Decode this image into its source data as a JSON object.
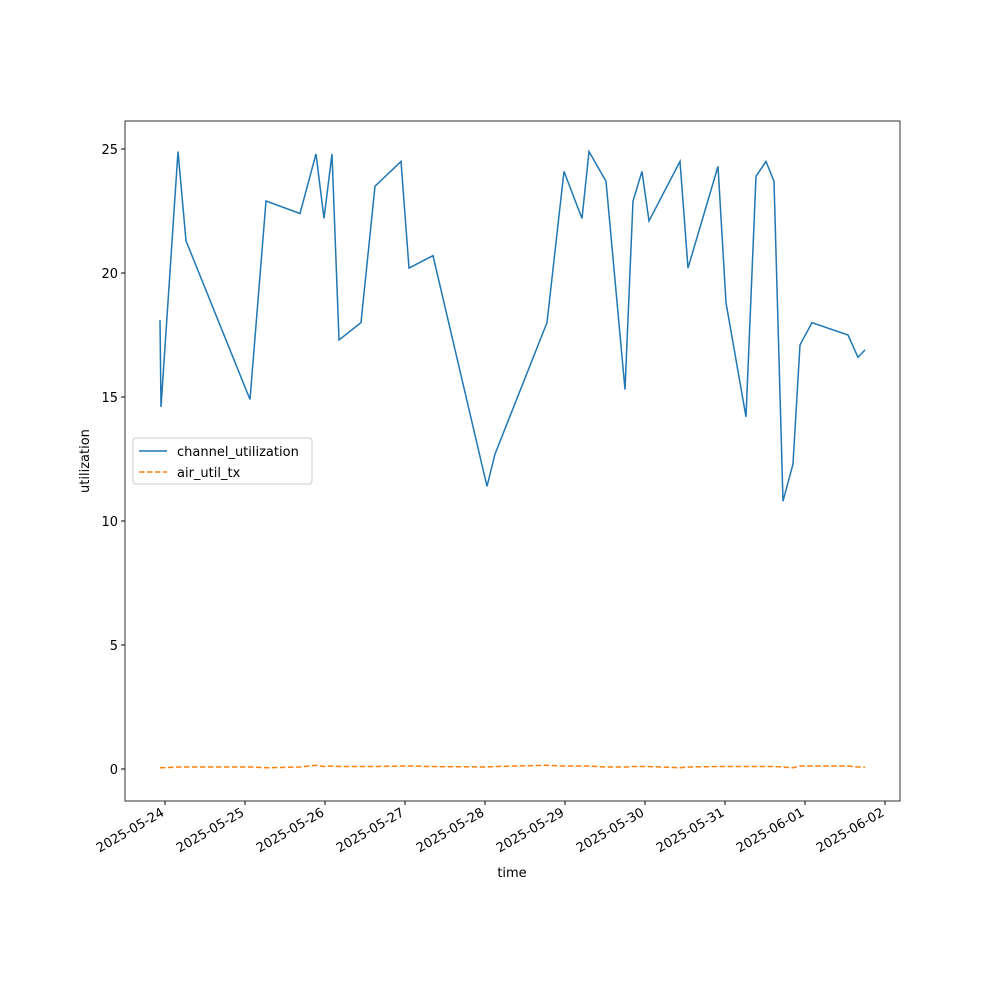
{
  "chart_data": {
    "type": "line",
    "xlabel": "time",
    "ylabel": "utilization",
    "x": [
      "2025-05-23T22:30",
      "2025-05-23T22:48",
      "2025-05-24T03:54",
      "2025-05-24T06:18",
      "2025-05-25T01:30",
      "2025-05-25T06:18",
      "2025-05-25T16:30",
      "2025-05-25T21:18",
      "2025-05-25T23:42",
      "2025-05-26T02:06",
      "2025-05-26T04:12",
      "2025-05-26T10:48",
      "2025-05-26T15:00",
      "2025-05-26T22:48",
      "2025-05-27T01:12",
      "2025-05-27T08:24",
      "2025-05-28T00:36",
      "2025-05-28T03:00",
      "2025-05-28T18:36",
      "2025-05-28T23:42",
      "2025-05-29T05:06",
      "2025-05-29T07:12",
      "2025-05-29T12:18",
      "2025-05-29T18:00",
      "2025-05-29T20:24",
      "2025-05-29T23:06",
      "2025-05-30T01:12",
      "2025-05-30T10:30",
      "2025-05-30T12:54",
      "2025-05-30T21:54",
      "2025-05-31T00:18",
      "2025-05-31T06:18",
      "2025-05-31T09:18",
      "2025-05-31T12:18",
      "2025-05-31T14:42",
      "2025-05-31T17:24",
      "2025-05-31T20:24",
      "2025-05-31T22:30",
      "2025-06-01T02:06",
      "2025-06-01T12:54",
      "2025-06-01T15:54",
      "2025-06-01T18:00"
    ],
    "series": [
      {
        "name": "channel_utilization",
        "color": "#1f77b4",
        "dash": false,
        "values": [
          18.1,
          14.6,
          24.9,
          21.3,
          14.9,
          22.9,
          22.4,
          24.8,
          22.2,
          24.8,
          17.3,
          18.0,
          23.5,
          24.5,
          20.2,
          20.7,
          11.4,
          12.7,
          18.0,
          24.1,
          22.2,
          24.9,
          23.7,
          15.3,
          22.9,
          24.1,
          22.1,
          24.5,
          20.2,
          24.3,
          18.8,
          14.2,
          23.9,
          24.5,
          23.7,
          10.8,
          12.3,
          17.1,
          18.0,
          17.5,
          16.6,
          16.9
        ]
      },
      {
        "name": "air_util_tx",
        "color": "#ff7f0e",
        "dash": true,
        "values": [
          0.05,
          0.05,
          0.08,
          0.08,
          0.08,
          0.05,
          0.08,
          0.15,
          0.1,
          0.12,
          0.1,
          0.1,
          0.1,
          0.12,
          0.12,
          0.1,
          0.08,
          0.1,
          0.15,
          0.12,
          0.12,
          0.12,
          0.08,
          0.08,
          0.1,
          0.1,
          0.1,
          0.05,
          0.08,
          0.1,
          0.1,
          0.1,
          0.1,
          0.1,
          0.1,
          0.08,
          0.05,
          0.12,
          0.12,
          0.12,
          0.08,
          0.08
        ]
      }
    ],
    "xlim": [
      "2025-05-23T12:00",
      "2025-06-02T04:30"
    ],
    "xticks": [
      "2025-05-24",
      "2025-05-25",
      "2025-05-26",
      "2025-05-27",
      "2025-05-28",
      "2025-05-29",
      "2025-05-30",
      "2025-05-31",
      "2025-06-01",
      "2025-06-02"
    ],
    "ylim": [
      -1.29,
      26.13
    ],
    "yticks": [
      0,
      5,
      10,
      15,
      20,
      25
    ],
    "grid": false,
    "legend": "center left"
  }
}
